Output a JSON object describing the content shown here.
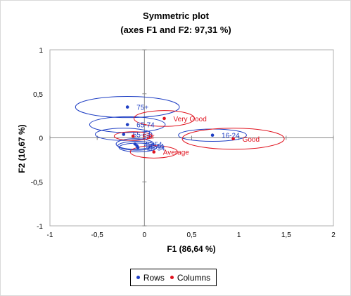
{
  "chart_data": {
    "type": "scatter",
    "title": "Symmetric plot",
    "subtitle": "(axes F1 and F2: 97,31 %)",
    "xlabel": "F1 (86,64 %)",
    "ylabel": "F2 (10,67 %)",
    "xlim": [
      -1,
      2
    ],
    "ylim": [
      -1,
      1
    ],
    "xticks": [
      "-1",
      "-0,5",
      "0",
      "0,5",
      "1",
      "1,5",
      "2"
    ],
    "yticks": [
      "1",
      "0,5",
      "0",
      "-0,5",
      "-1"
    ],
    "grid": false,
    "legend": "bottom",
    "series": [
      {
        "name": "Rows",
        "color": "#1f3fc4",
        "points": [
          {
            "label": "75+",
            "x": -0.18,
            "y": 0.35,
            "ex": 0.55,
            "ey": 0.12
          },
          {
            "label": "65-74",
            "x": -0.18,
            "y": 0.15,
            "ex": 0.4,
            "ey": 0.09
          },
          {
            "label": "55-64",
            "x": -0.22,
            "y": 0.04,
            "ex": 0.3,
            "ey": 0.07
          },
          {
            "label": "45-54",
            "x": -0.1,
            "y": -0.07,
            "ex": 0.2,
            "ey": 0.06
          },
          {
            "label": "35-44",
            "x": -0.08,
            "y": -0.09,
            "ex": 0.2,
            "ey": 0.05
          },
          {
            "label": "25-34",
            "x": -0.07,
            "y": -0.11,
            "ex": 0.2,
            "ey": 0.05
          },
          {
            "label": "16-24",
            "x": 0.72,
            "y": 0.03,
            "ex": 0.36,
            "ey": 0.07
          }
        ]
      },
      {
        "name": "Columns",
        "color": "#e0121e",
        "points": [
          {
            "label": "Very Good",
            "x": 0.21,
            "y": 0.22,
            "ex": 0.32,
            "ey": 0.09
          },
          {
            "label": "Good",
            "x": 0.94,
            "y": -0.01,
            "ex": 0.54,
            "ey": 0.12
          },
          {
            "label": "Average",
            "x": 0.1,
            "y": -0.16,
            "ex": 0.25,
            "ey": 0.07
          },
          {
            "label": "Fair",
            "x": -0.12,
            "y": 0.02,
            "ex": 0.2,
            "ey": 0.05
          }
        ]
      }
    ]
  }
}
